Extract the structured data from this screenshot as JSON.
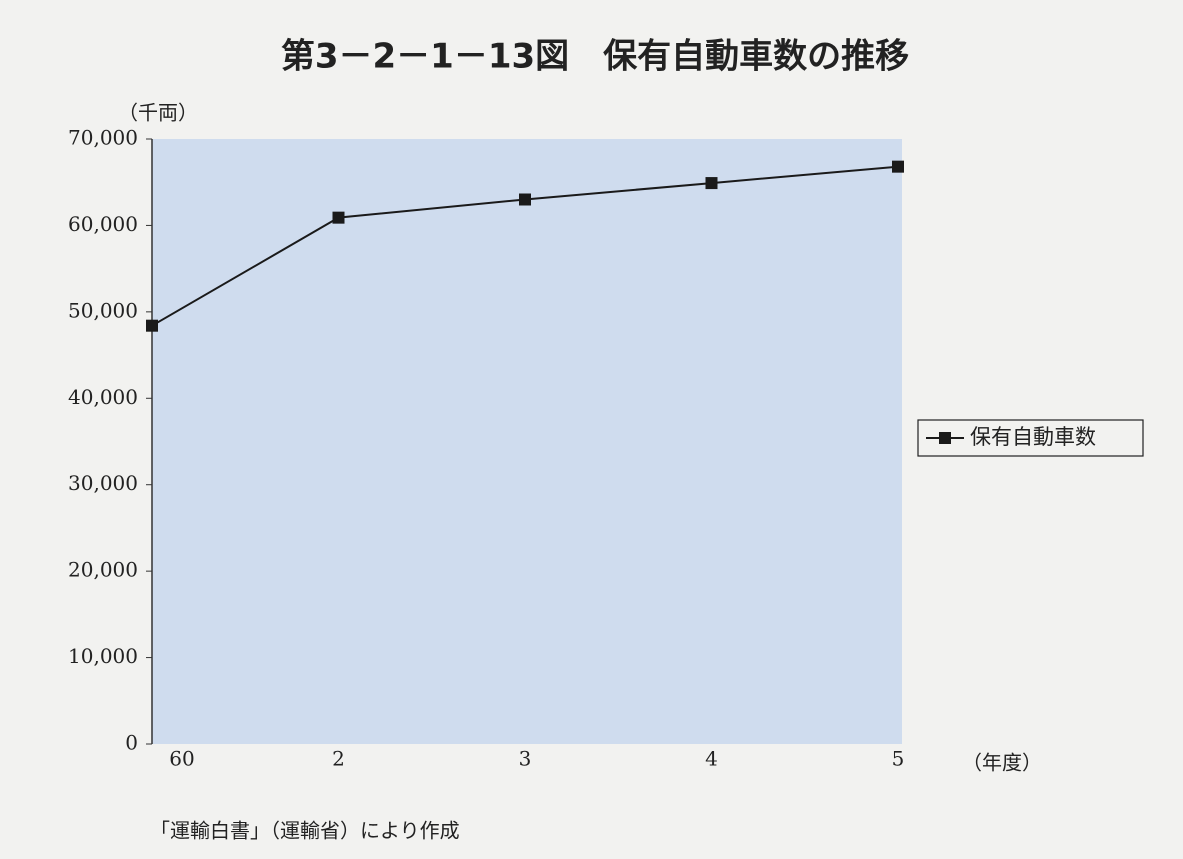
{
  "chart_data": {
    "type": "line",
    "title": "第3－2－1－13図　保有自動車数の推移",
    "y_label": "（千両）",
    "x_label": "（年度）",
    "note": "「運輸白書」（運輸省）により作成",
    "categories": [
      "60",
      "2",
      "3",
      "4",
      "5"
    ],
    "series": [
      {
        "name": "保有自動車数",
        "color": "#1a1a1a",
        "values": [
          48400,
          60900,
          63000,
          64900,
          66800
        ]
      }
    ],
    "ylim": [
      0,
      70000
    ],
    "yticks": [
      0,
      {
        "value": 10000,
        "label": "10,000"
      },
      {
        "value": 20000,
        "label": "20,000"
      },
      {
        "value": 30000,
        "label": "30,000"
      },
      {
        "value": 40000,
        "label": "40,000"
      },
      {
        "value": 50000,
        "label": "50,000"
      },
      {
        "value": 60000,
        "label": "60,000"
      },
      {
        "value": 70000,
        "label": "70,000"
      }
    ],
    "plot_background": "#cfdcee",
    "legend": "right"
  }
}
